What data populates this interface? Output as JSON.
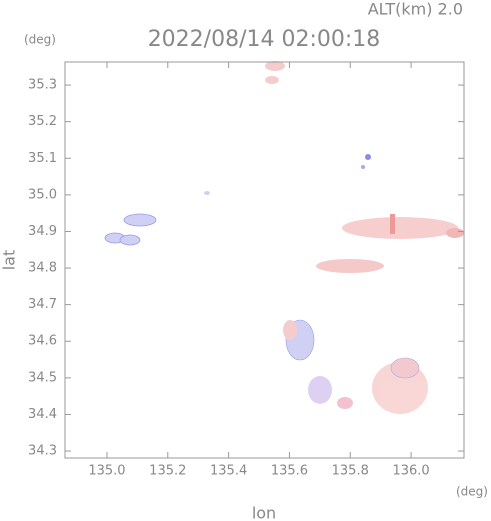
{
  "chart_data": {
    "type": "radar-map",
    "header": "ALT(km) 2.0",
    "title": "2022/08/14 02:00:18",
    "y_unit": "(deg)",
    "x_unit": "(deg)",
    "xlabel": "lon",
    "ylabel": "lat",
    "xlim": [
      134.862,
      136.174
    ],
    "ylim": [
      34.281,
      35.363
    ],
    "xticks": [
      {
        "value": 135.0,
        "label": "135.0"
      },
      135.2,
      135.4,
      135.6,
      135.8,
      {
        "value": 136.0,
        "label": "136.0"
      }
    ],
    "yticks": [
      34.3,
      34.4,
      34.5,
      34.6,
      34.7,
      34.8,
      34.9,
      {
        "value": 35.0,
        "label": "35.0"
      },
      35.1,
      35.2,
      35.3
    ]
  }
}
